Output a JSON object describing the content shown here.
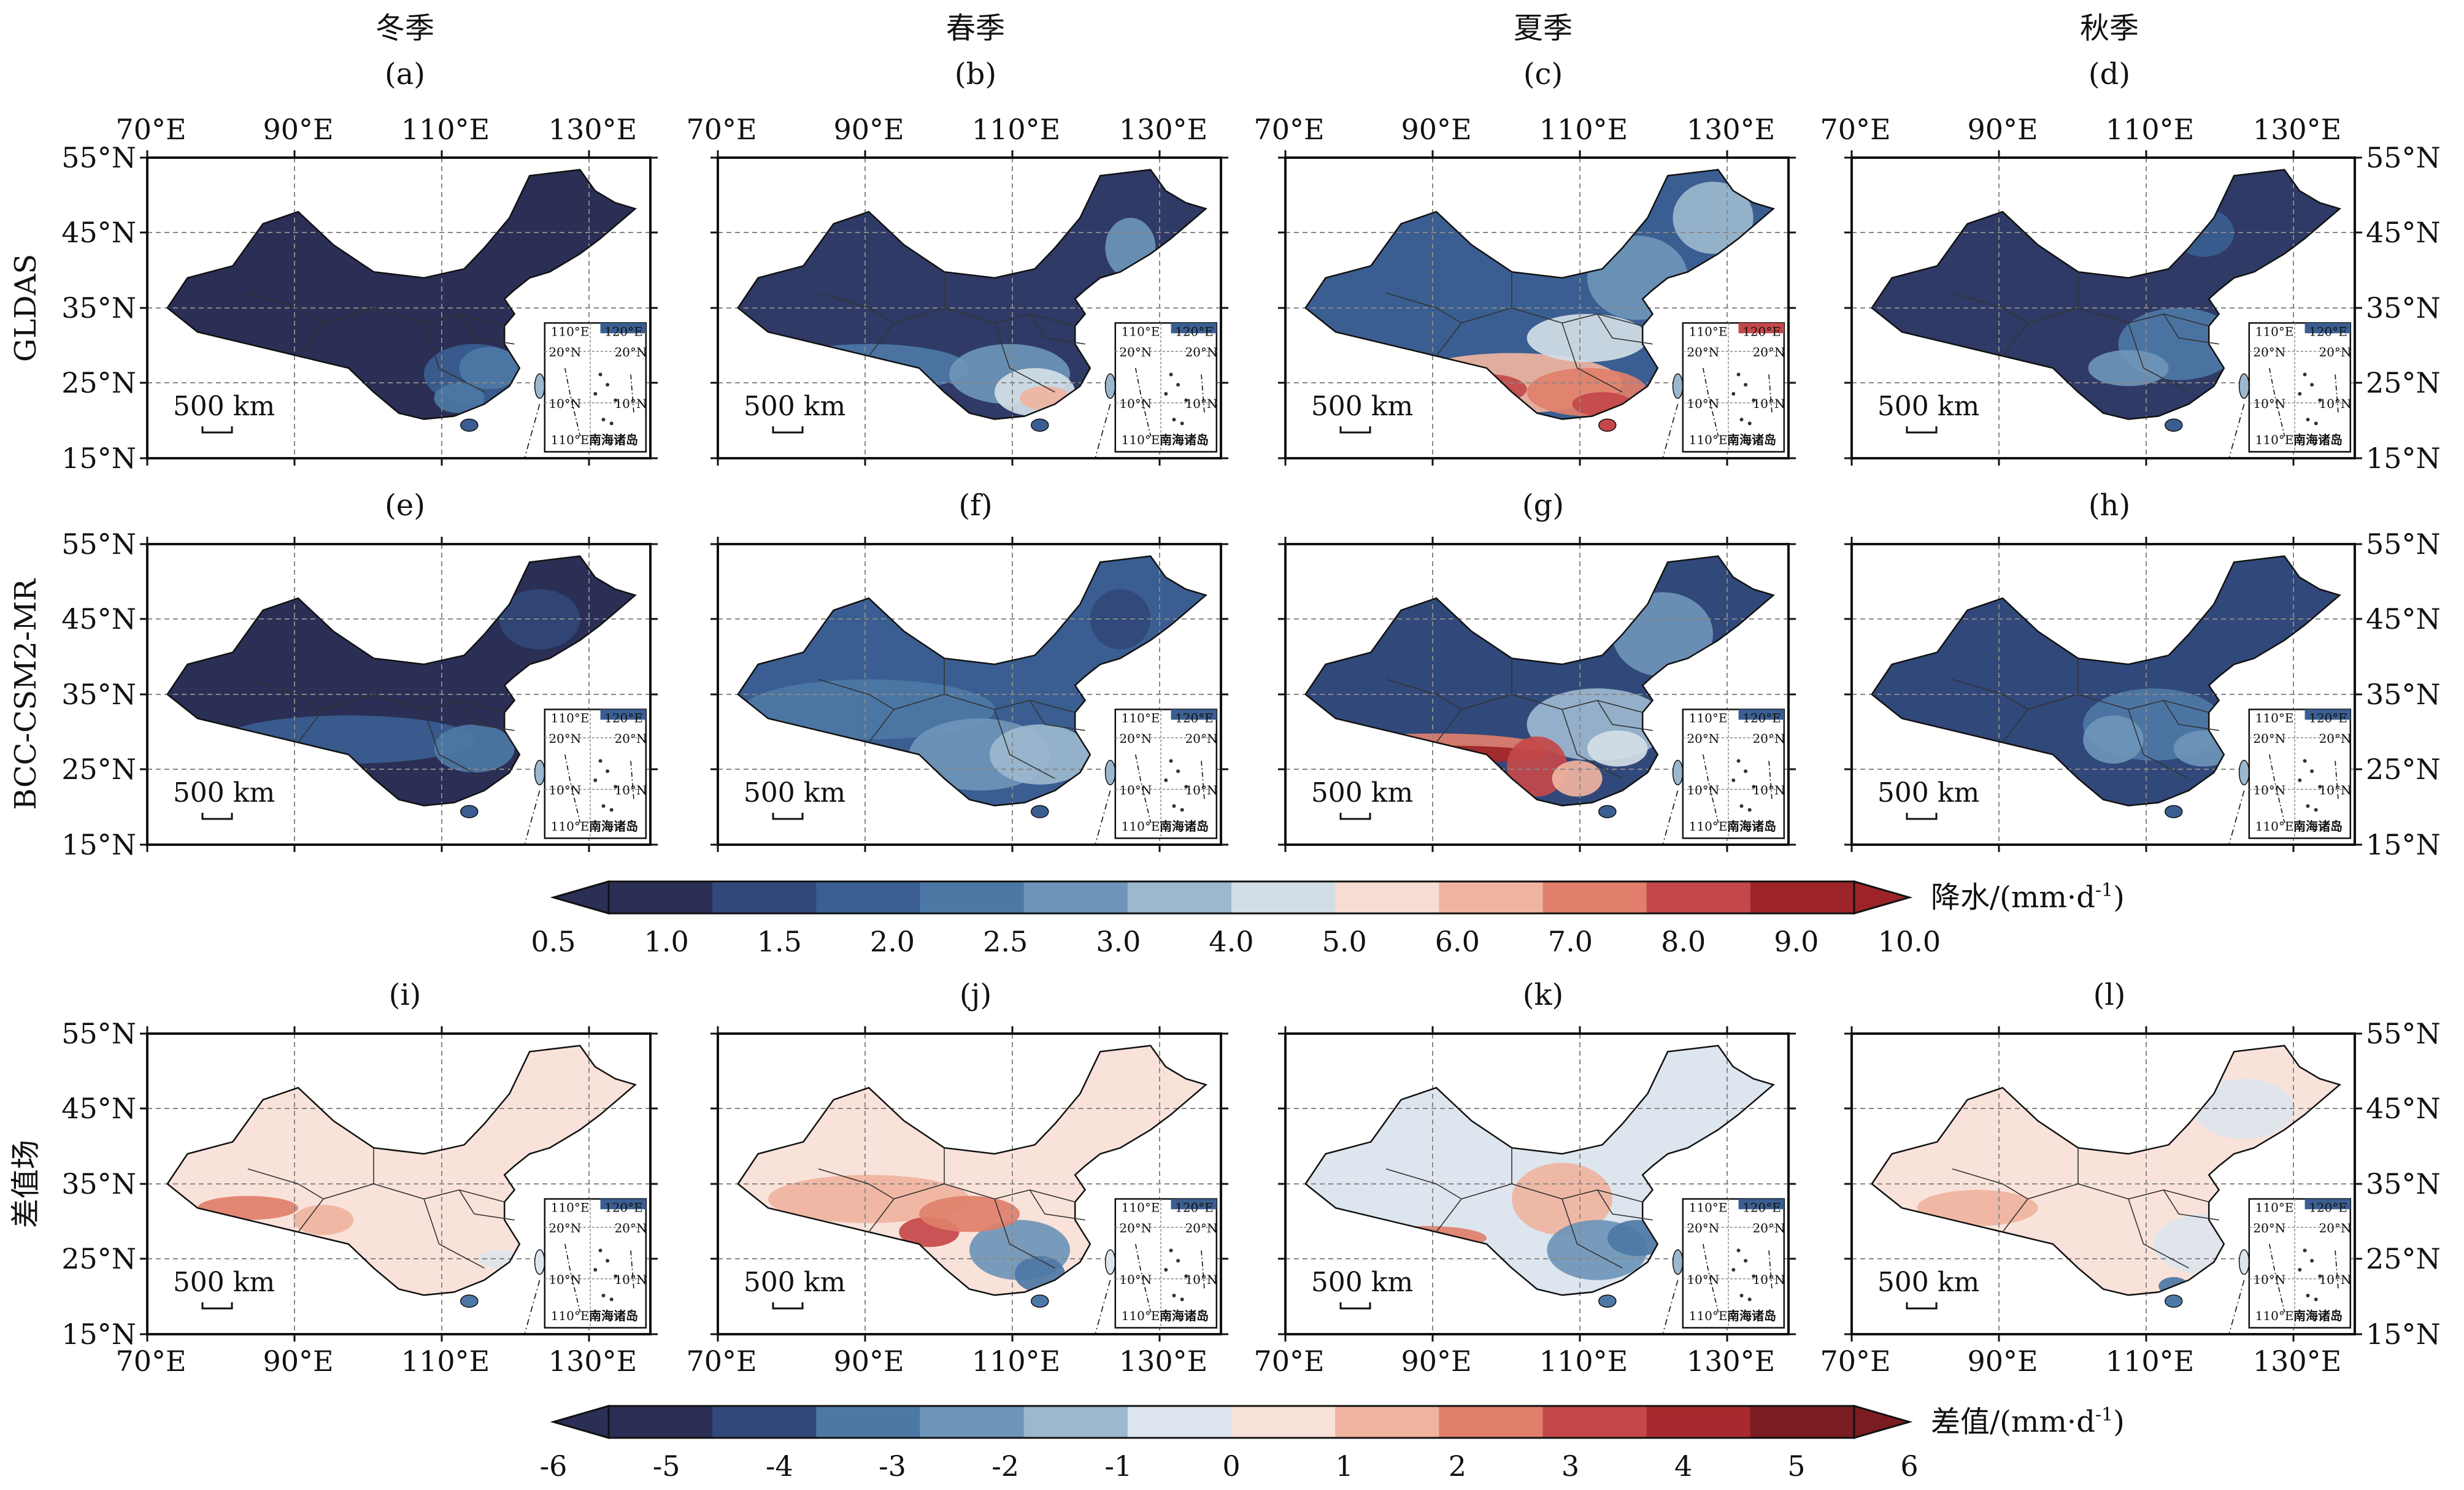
{
  "seasons": [
    "冬季",
    "春季",
    "夏季",
    "秋季"
  ],
  "panel_letters": [
    "(a)",
    "(b)",
    "(c)",
    "(d)",
    "(e)",
    "(f)",
    "(g)",
    "(h)",
    "(i)",
    "(j)",
    "(k)",
    "(l)"
  ],
  "row_labels": [
    "GLDAS",
    "BCC-CSM2-MR",
    "差值场"
  ],
  "lon_ticks": [
    "70°E",
    "90°E",
    "110°E",
    "130°E"
  ],
  "lat_ticks": [
    "55°N",
    "45°N",
    "35°N",
    "25°N",
    "15°N"
  ],
  "scale_bar": "500 km",
  "inset": {
    "lon_a": "110°E",
    "lon_b": "120°E",
    "lat_a": "20°N",
    "lat_b": "10°N",
    "name": "南海诸岛"
  },
  "colorbar_precip": {
    "label": "降水/(mm·d",
    "label_sup": "-1",
    "label_close": ")",
    "ticks": [
      "0.5",
      "1.0",
      "1.5",
      "2.0",
      "2.5",
      "3.0",
      "4.0",
      "5.0",
      "6.0",
      "7.0",
      "8.0",
      "9.0",
      "10.0"
    ],
    "colors": [
      "#2b2f55",
      "#31487a",
      "#3a5e91",
      "#4d78a6",
      "#6e95b9",
      "#9cb8cf",
      "#d2dee6",
      "#f6dcd2",
      "#efb49f",
      "#e07f6b",
      "#c4484a",
      "#9c2428"
    ]
  },
  "colorbar_diff": {
    "label": "差值/(mm·d",
    "label_sup": "-1",
    "label_close": ")",
    "ticks": [
      "-6",
      "-5",
      "-4",
      "-3",
      "-2",
      "-1",
      "0",
      "1",
      "2",
      "3",
      "4",
      "5",
      "6"
    ],
    "colors": [
      "#2b2f55",
      "#31487a",
      "#4d78a6",
      "#6e95b9",
      "#9cb8cf",
      "#dde5ee",
      "#f9e2d9",
      "#efb49f",
      "#e07f6b",
      "#c4484a",
      "#a82a2e",
      "#7a1c22"
    ]
  },
  "colors": {
    "precip_low": "#2b2f55",
    "precip_mid": "#9cb8cf",
    "precip_high": "#c4484a",
    "diff_neg": "#4d78a6",
    "diff_pos": "#efb49f"
  }
}
